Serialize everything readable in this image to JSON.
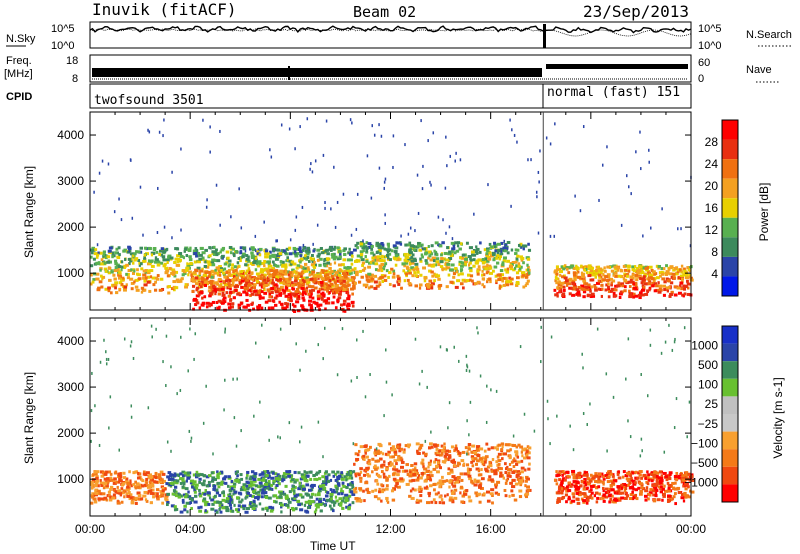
{
  "header": {
    "station": "Inuvik (fitACF)",
    "beam": "Beam 02",
    "date": "23/Sep/2013"
  },
  "summary": {
    "nsky_label": "N.Sky",
    "nsky_ticks": [
      "10^5",
      "10^0"
    ],
    "nsearch_label": "N.Search",
    "nsearch_ticks": [
      "10^5",
      "10^0"
    ],
    "freq_label": "Freq.",
    "freq_unit": "[MHz]",
    "freq_ticks": [
      "18",
      "8"
    ],
    "nave_label": "Nave",
    "nave_ticks": [
      "60",
      "0"
    ],
    "cpid_label": "CPID",
    "cpid_modes": [
      {
        "name": "twofsound 3501",
        "start_hour": 0,
        "end_hour": 18.1
      },
      {
        "name": "normal (fast) 151",
        "start_hour": 18.1,
        "end_hour": 24
      }
    ]
  },
  "colors": {
    "power": [
      "#0018e8",
      "#2a44a8",
      "#3c8a5c",
      "#58b050",
      "#e8d000",
      "#f4a020",
      "#f07010",
      "#e83010",
      "#ff0000"
    ],
    "velocity": [
      "#ff0000",
      "#f04810",
      "#f47a18",
      "#f8a030",
      "#c8c8c8",
      "#c0c0c0",
      "#68c030",
      "#3c8c5c",
      "#2a44a8",
      "#1830c8"
    ]
  },
  "chart_data": [
    {
      "type": "heatmap",
      "name": "power",
      "xlabel": "",
      "ylabel": "Slant Range [km]",
      "xlim": [
        0,
        24
      ],
      "ylim": [
        200,
        4500
      ],
      "yticks": [
        "1000",
        "2000",
        "3000",
        "4000"
      ],
      "colorbar_label": "Power [dB]",
      "colorbar_ticks": [
        "4",
        "8",
        "12",
        "16",
        "20",
        "24",
        "28"
      ],
      "features": [
        {
          "hours": [
            0,
            10.5
          ],
          "range_km": [
            600,
            1600
          ],
          "level": "medium"
        },
        {
          "hours": [
            4,
            10.5
          ],
          "range_km": [
            200,
            1100
          ],
          "level": "high"
        },
        {
          "hours": [
            10.5,
            17.5
          ],
          "range_km": [
            700,
            1700
          ],
          "level": "medium"
        },
        {
          "hours": [
            18.5,
            24
          ],
          "range_km": [
            500,
            1200
          ],
          "level": "medium-high"
        }
      ]
    },
    {
      "type": "heatmap",
      "name": "velocity",
      "xlabel": "Time UT",
      "ylabel": "Slant Range [km]",
      "xlim": [
        0,
        24
      ],
      "ylim": [
        200,
        4500
      ],
      "xticks": [
        "00:00",
        "04:00",
        "08:00",
        "12:00",
        "16:00",
        "20:00",
        "00:00"
      ],
      "yticks": [
        "1000",
        "2000",
        "3000",
        "4000"
      ],
      "colorbar_label": "Velocity [m s-1]",
      "colorbar_ticks": [
        "1000",
        "500",
        "100",
        "25",
        "−25",
        "−100",
        "−500",
        "−1000"
      ],
      "features": [
        {
          "hours": [
            0,
            3
          ],
          "range_km": [
            500,
            1200
          ],
          "velocity": "negative"
        },
        {
          "hours": [
            3,
            10.5
          ],
          "range_km": [
            300,
            1200
          ],
          "velocity": "positive"
        },
        {
          "hours": [
            10.5,
            17.5
          ],
          "range_km": [
            500,
            1800
          ],
          "velocity": "negative"
        },
        {
          "hours": [
            18.5,
            24
          ],
          "range_km": [
            500,
            1200
          ],
          "velocity": "strong-negative"
        }
      ]
    }
  ]
}
